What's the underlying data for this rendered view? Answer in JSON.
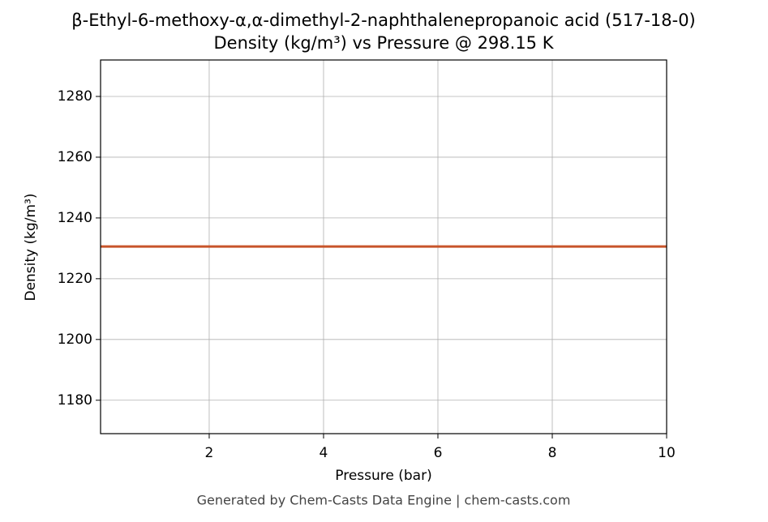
{
  "chart_data": {
    "type": "line",
    "title": "β-Ethyl-6-methoxy-α,α-dimethyl-2-naphthalenepropanoic acid (517-18-0)",
    "subtitle": "Density (kg/m³) vs Pressure @ 298.15 K",
    "x_label": "Pressure (bar)",
    "y_label": "Density (kg/m³)",
    "x": [
      0.1,
      1,
      2,
      3,
      4,
      5,
      6,
      7,
      8,
      9,
      10
    ],
    "series": [
      {
        "name": "Density",
        "color": "#c8542a",
        "values": [
          1230.6,
          1230.6,
          1230.6,
          1230.6,
          1230.6,
          1230.6,
          1230.6,
          1230.6,
          1230.6,
          1230.6,
          1230.6
        ]
      }
    ],
    "xlim": [
      0.1,
      10
    ],
    "ylim": [
      1169,
      1292
    ],
    "xticks": [
      2,
      4,
      6,
      8,
      10
    ],
    "yticks": [
      1180,
      1200,
      1220,
      1240,
      1260,
      1280
    ],
    "grid": true,
    "footer": "Generated by Chem-Casts Data Engine | chem-casts.com"
  }
}
